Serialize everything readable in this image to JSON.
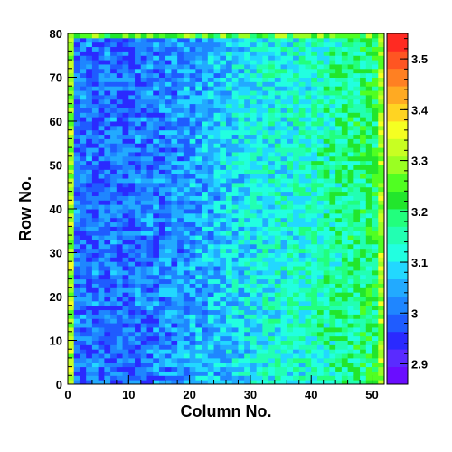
{
  "chart_data": {
    "type": "heatmap",
    "title": "",
    "xlabel": "Column No.",
    "ylabel": "Row No.",
    "x_range": [
      0,
      52
    ],
    "y_range": [
      0,
      80
    ],
    "x_ticks": [
      0,
      10,
      20,
      30,
      40,
      50
    ],
    "y_ticks": [
      0,
      10,
      20,
      30,
      40,
      50,
      60,
      70,
      80
    ],
    "colorbar": {
      "range": [
        2.86,
        3.55
      ],
      "ticks": [
        2.9,
        3,
        3.1,
        3.2,
        3.3,
        3.4,
        3.5
      ],
      "palette": [
        "#6a0dff",
        "#5a2bff",
        "#2a2aff",
        "#1f5cff",
        "#1f86ff",
        "#22aaff",
        "#22d8ff",
        "#22ffe0",
        "#22ffb2",
        "#22ff7d",
        "#22e62c",
        "#50ff22",
        "#9aff22",
        "#c8ff22",
        "#f5ff22",
        "#ffd422",
        "#ffaa22",
        "#ff8022",
        "#ff5522",
        "#ff2a22"
      ]
    },
    "value_trend": {
      "note_column_profile": [
        [
          0,
          3.0
        ],
        [
          10,
          3.0
        ],
        [
          20,
          3.04
        ],
        [
          30,
          3.1
        ],
        [
          40,
          3.14
        ],
        [
          50,
          3.2
        ],
        [
          51,
          3.3
        ]
      ],
      "edge_values": 3.3
    },
    "grid": false
  }
}
